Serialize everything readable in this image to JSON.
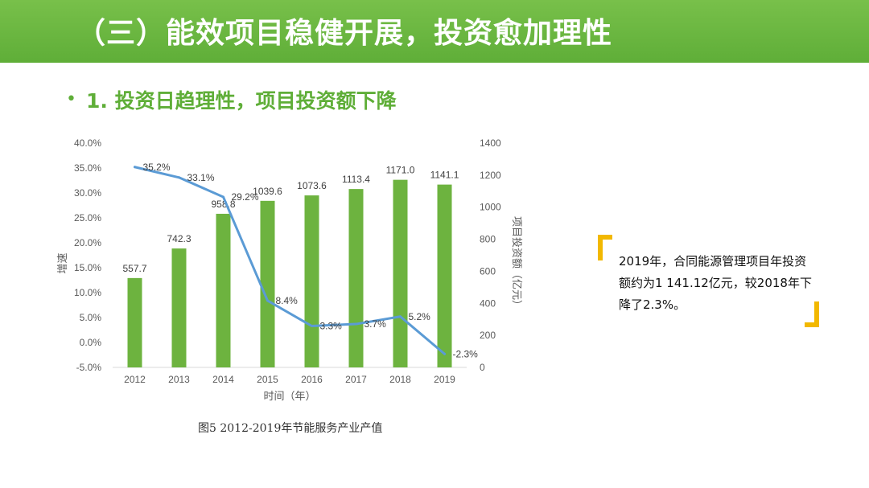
{
  "header": {
    "title": "（三）能效项目稳健开展，投资愈加理性"
  },
  "subtitle": {
    "bullet": "•",
    "text": "1. 投资日趋理性，项目投资额下降"
  },
  "chart_data": {
    "type": "bar+line",
    "categories": [
      "2012",
      "2013",
      "2014",
      "2015",
      "2016",
      "2017",
      "2018",
      "2019"
    ],
    "series": [
      {
        "name": "",
        "kind": "bar",
        "axis": "right",
        "values": [
          557.7,
          742.3,
          958.8,
          1039.6,
          1073.6,
          1113.4,
          1171.0,
          1141.1
        ],
        "labels": [
          "557.7",
          "742.3",
          "958.8",
          "1039.6",
          "1073.6",
          "1113.4",
          "1171.0",
          "1141.1"
        ],
        "color": "#6db33f"
      },
      {
        "name": "",
        "kind": "line",
        "axis": "left",
        "values": [
          35.2,
          33.1,
          29.2,
          8.4,
          3.3,
          3.7,
          5.2,
          -2.3
        ],
        "labels": [
          "35.2%",
          "33.1%",
          "29.2%",
          "8.4%",
          "3.3%",
          "3.7%",
          "5.2%",
          "-2.3%"
        ],
        "color": "#5b9bd5"
      }
    ],
    "xlabel": "时间（年）",
    "ylabel_left": "增速",
    "ylabel_right": "项目投资额（亿元）",
    "left_axis": {
      "range": [
        -5,
        40
      ],
      "ticks": [
        "-5.0%",
        "0.0%",
        "5.0%",
        "10.0%",
        "15.0%",
        "20.0%",
        "25.0%",
        "30.0%",
        "35.0%",
        "40.0%"
      ]
    },
    "right_axis": {
      "range": [
        0,
        1400
      ],
      "ticks": [
        "0",
        "200",
        "400",
        "600",
        "800",
        "1000",
        "1200",
        "1400"
      ]
    },
    "grid": false,
    "legend": "none"
  },
  "caption": "图5  2012-2019年节能服务产业产值",
  "callout": {
    "text": "2019年，合同能源管理项目年投资额约为1 141.12亿元，较2018年下降了2.3%。",
    "accent": "#f2b800"
  },
  "colors": {
    "header_green": "#5fae38",
    "title_white": "#ffffff"
  }
}
